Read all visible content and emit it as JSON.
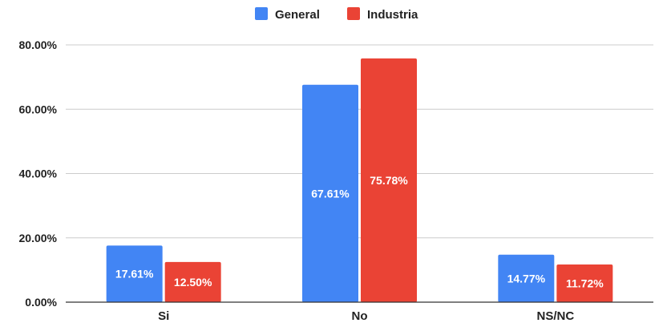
{
  "chart_data": {
    "type": "bar",
    "categories": [
      "Si",
      "No",
      "NS/NC"
    ],
    "series": [
      {
        "name": "General",
        "color": "#4285f4",
        "values": [
          17.61,
          67.61,
          14.77
        ],
        "labels": [
          "17.61%",
          "67.61%",
          "14.77%"
        ]
      },
      {
        "name": "Industria",
        "color": "#ea4335",
        "values": [
          12.5,
          75.78,
          11.72
        ],
        "labels": [
          "12.50%",
          "75.78%",
          "11.72%"
        ]
      }
    ],
    "ylim": [
      0,
      80
    ],
    "yticks": [
      0,
      20,
      40,
      60,
      80
    ],
    "ytick_labels": [
      "0.00%",
      "20.00%",
      "40.00%",
      "60.00%",
      "80.00%"
    ],
    "grid": true,
    "legend_position": "top-center",
    "title": "",
    "xlabel": "",
    "ylabel": ""
  }
}
